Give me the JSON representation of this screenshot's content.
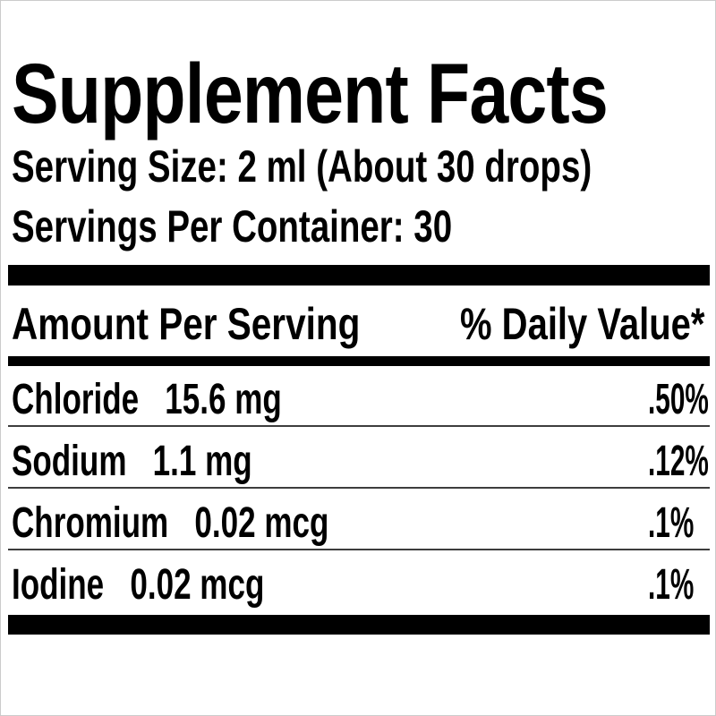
{
  "panel": {
    "title": "Supplement Facts",
    "serving_size": "Serving Size: 2 ml (About 30 drops)",
    "servings_per_container": "Servings Per Container: 30",
    "header": {
      "amount_col": "Amount Per Serving",
      "daily_value_col": "% Daily Value*"
    },
    "nutrients": [
      {
        "name": "Chloride",
        "amount": "15.6 mg",
        "daily_value": ".50%"
      },
      {
        "name": "Sodium",
        "amount": "1.1 mg",
        "daily_value": ".12%"
      },
      {
        "name": "Chromium",
        "amount": "0.02 mcg",
        "daily_value": ".1%"
      },
      {
        "name": "Iodine",
        "amount": "0.02 mcg",
        "daily_value": ".1%"
      }
    ],
    "colors": {
      "text": "#000000",
      "background": "#ffffff",
      "separator_bars": "#000000",
      "thin_rules": "#3d3d3d",
      "frame": "#cbcbcb"
    }
  }
}
